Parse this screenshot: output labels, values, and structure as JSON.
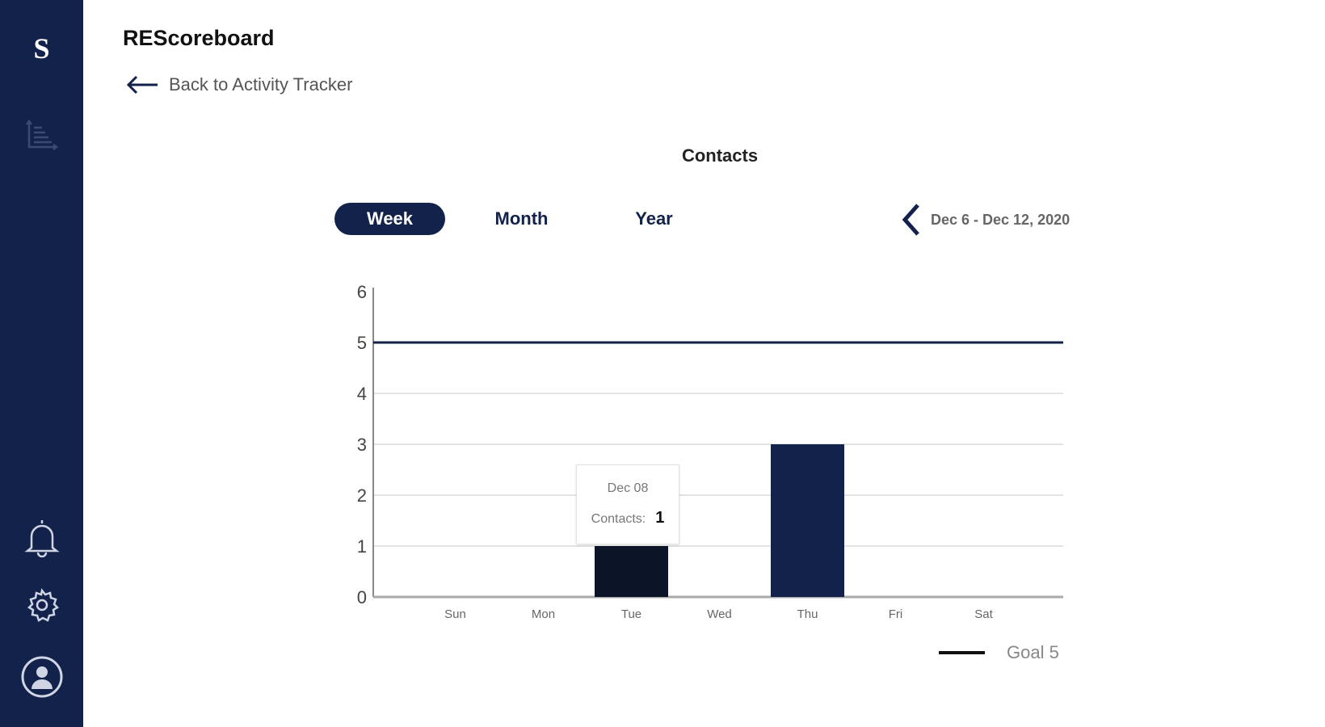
{
  "sidebar": {
    "logo": "S",
    "icons": [
      "chart-icon",
      "bell-icon",
      "gear-icon",
      "avatar-icon"
    ]
  },
  "header": {
    "title": "REScoreboard",
    "back_label": "Back to Activity Tracker"
  },
  "chart_title": "Contacts",
  "tabs": [
    {
      "label": "Week",
      "active": true
    },
    {
      "label": "Month",
      "active": false
    },
    {
      "label": "Year",
      "active": false
    }
  ],
  "date_range": "Dec 6 - Dec 12, 2020",
  "tooltip": {
    "date": "Dec 08",
    "label": "Contacts:",
    "value": "1"
  },
  "legend": {
    "label": "Goal 5"
  },
  "colors": {
    "navy": "#13224a",
    "bar_hover": "#0c1427"
  },
  "chart_data": {
    "type": "bar",
    "title": "Contacts",
    "categories": [
      "Sun",
      "Mon",
      "Tue",
      "Wed",
      "Thu",
      "Fri",
      "Sat"
    ],
    "values": [
      0,
      0,
      1,
      0,
      3,
      0,
      0
    ],
    "ylim": [
      0,
      6
    ],
    "yticks": [
      "0",
      "1",
      "2",
      "3",
      "4",
      "5",
      "6"
    ],
    "goal": 5,
    "grid": true,
    "legend_position": "bottom-right"
  }
}
